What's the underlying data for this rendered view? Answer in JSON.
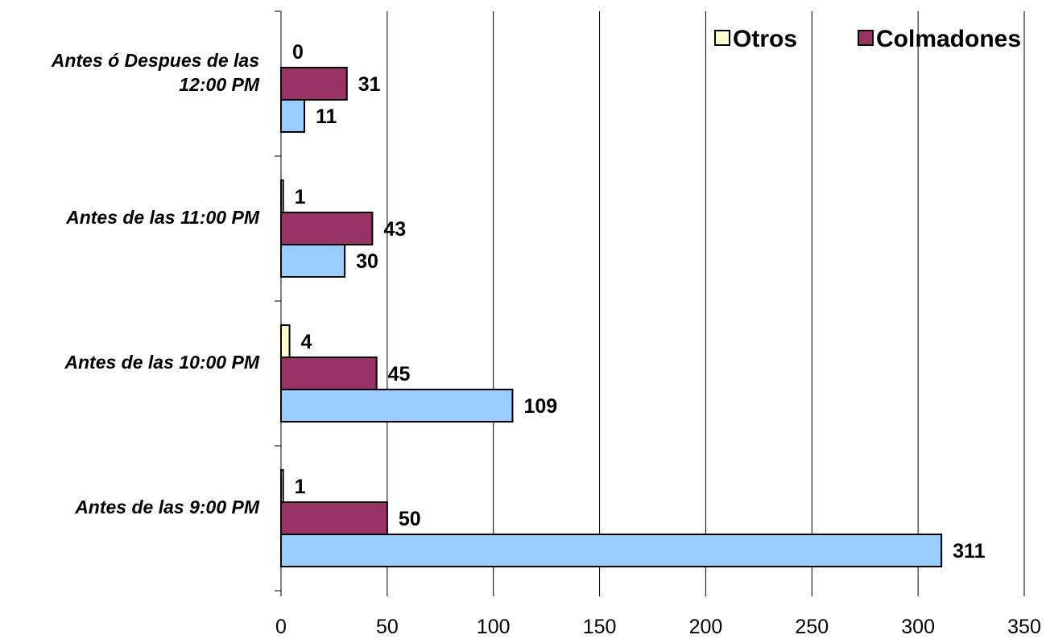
{
  "chart_data": {
    "type": "bar",
    "orientation": "horizontal",
    "title": "",
    "xlabel": "",
    "ylabel": "",
    "categories": [
      [
        "Antes de las  9:00 PM"
      ],
      [
        "Antes de las 10:00 PM"
      ],
      [
        "Antes de las 11:00 PM"
      ],
      [
        "Antes ó Despues de las",
        "12:00 PM"
      ]
    ],
    "series": [
      {
        "name": "",
        "color": "#99ccff",
        "values": [
          311,
          109,
          30,
          11
        ]
      },
      {
        "name": "Colmadones",
        "color": "#993366",
        "values": [
          50,
          45,
          43,
          31
        ]
      },
      {
        "name": "Otros",
        "color": "#ffffcc",
        "values": [
          1,
          4,
          1,
          0
        ]
      }
    ],
    "legend": [
      "Otros",
      "Colmadones"
    ],
    "xlim": [
      0,
      350
    ],
    "xticks": [
      0,
      50,
      100,
      150,
      200,
      250,
      300,
      350
    ],
    "grid": "vertical",
    "legend_position": "top-right"
  }
}
